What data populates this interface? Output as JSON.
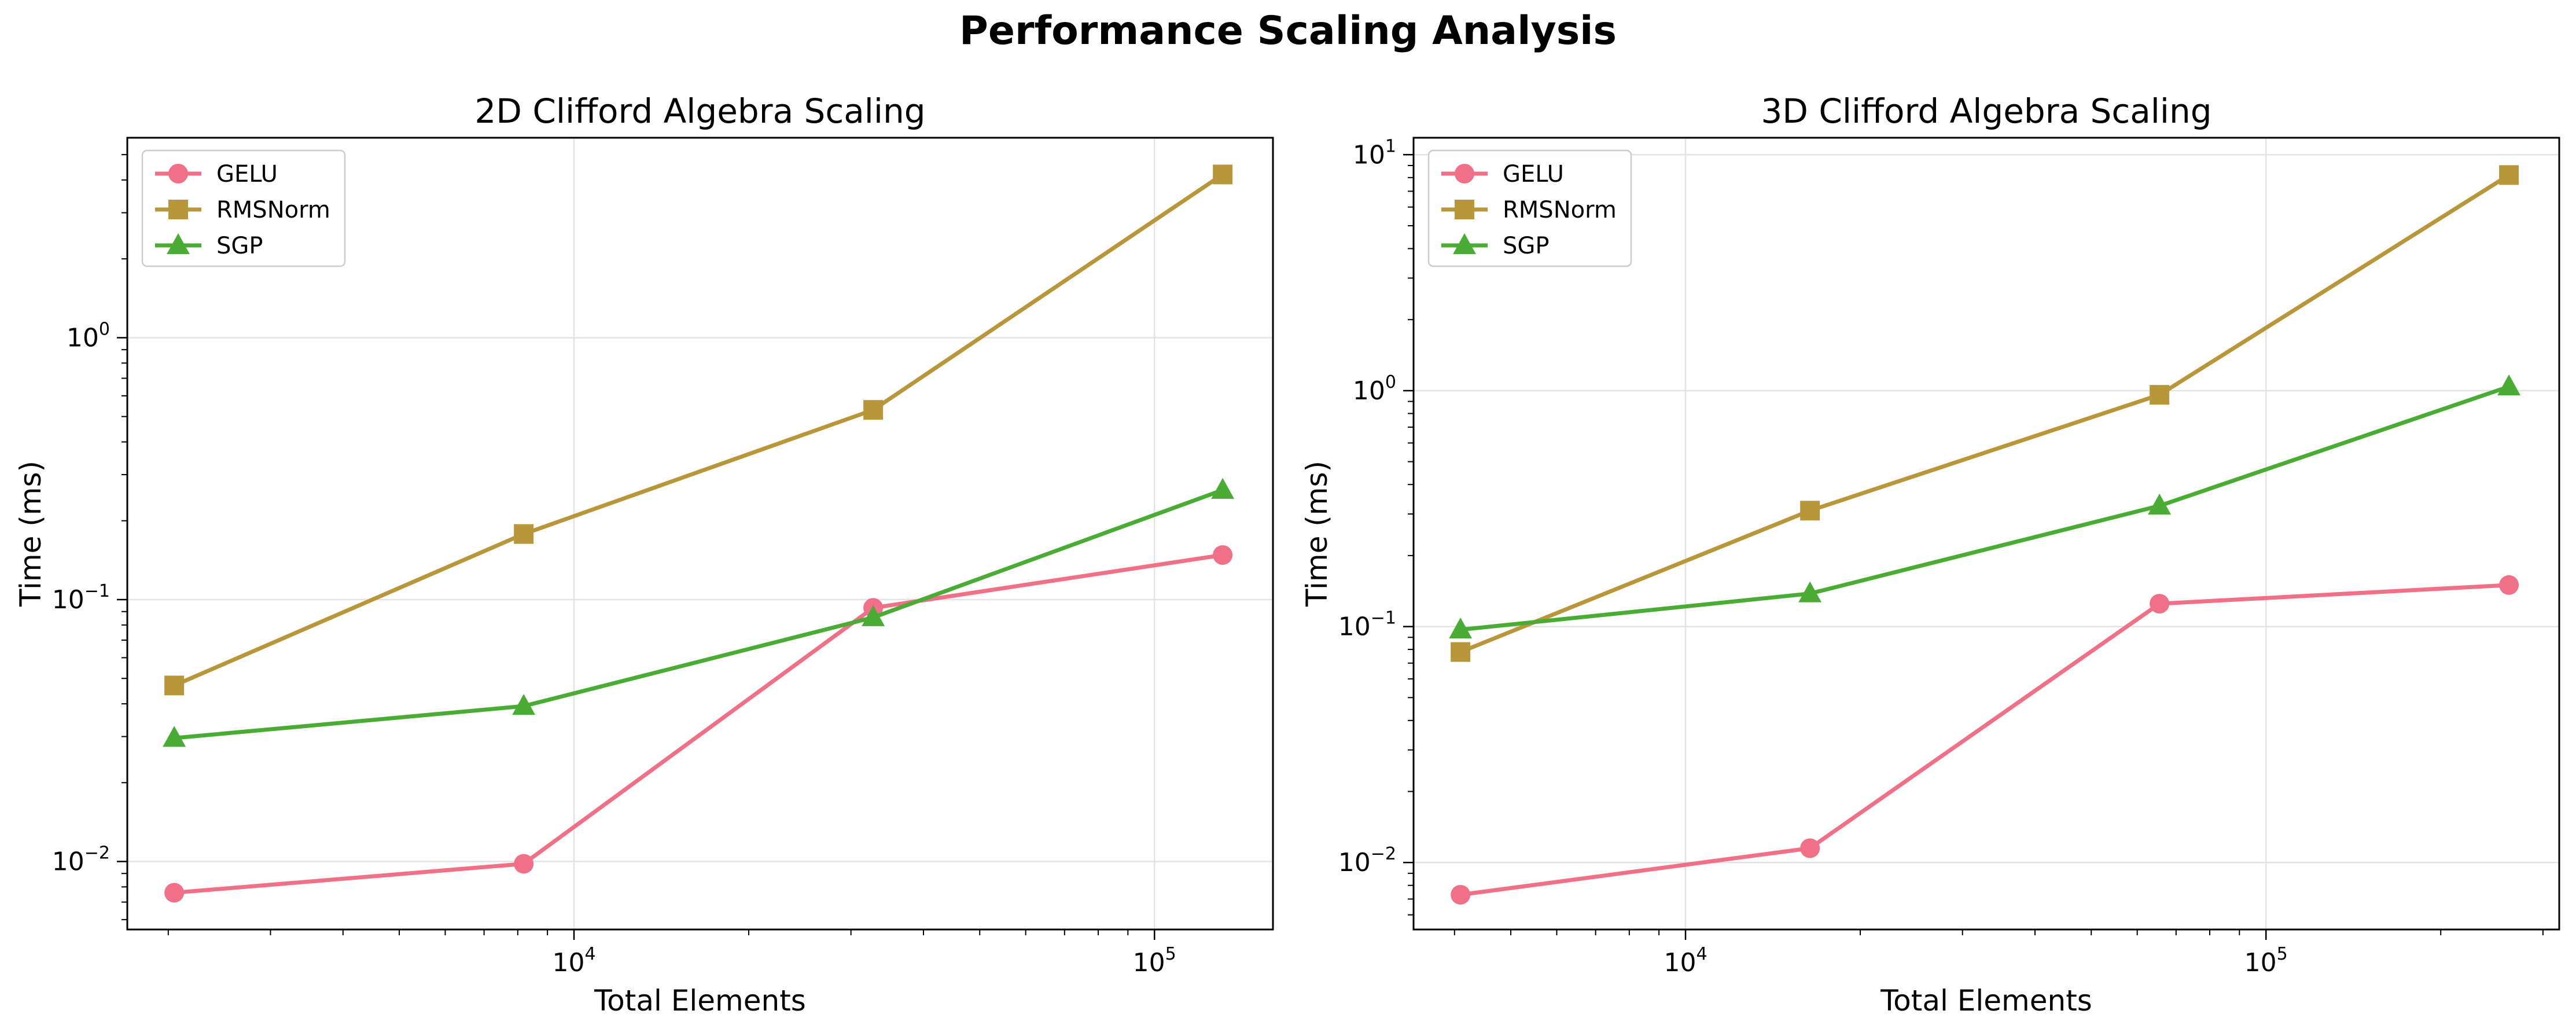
{
  "title": "Performance Scaling Analysis",
  "colors": {
    "GELU": "#f07088",
    "RMSNorm": "#b8963a",
    "SGP": "#4aac34"
  },
  "chart_data": [
    {
      "type": "line",
      "title": "2D Clifford Algebra Scaling",
      "xlabel": "Total Elements",
      "ylabel": "Time (ms)",
      "xscale": "log",
      "yscale": "log",
      "xlim": [
        1700,
        160000
      ],
      "ylim": [
        0.0055,
        5.8
      ],
      "xticks": [
        {
          "v": 10000,
          "base": "10",
          "exp": "4"
        },
        {
          "v": 100000,
          "base": "10",
          "exp": "5"
        }
      ],
      "yticks": [
        {
          "v": 0.01,
          "base": "10",
          "exp": "−2"
        },
        {
          "v": 0.1,
          "base": "10",
          "exp": "−1"
        },
        {
          "v": 1,
          "base": "10",
          "exp": "0"
        }
      ],
      "grid": true,
      "legend": "upper-left",
      "x": [
        2048,
        8192,
        32768,
        131072
      ],
      "series": [
        {
          "name": "GELU",
          "marker": "circle",
          "values": [
            0.0076,
            0.0098,
            0.093,
            0.148
          ]
        },
        {
          "name": "RMSNorm",
          "marker": "square",
          "values": [
            0.047,
            0.178,
            0.53,
            4.2
          ]
        },
        {
          "name": "SGP",
          "marker": "triangle",
          "values": [
            0.0296,
            0.0392,
            0.0855,
            0.262
          ]
        }
      ]
    },
    {
      "type": "line",
      "title": "3D Clifford Algebra Scaling",
      "xlabel": "Total Elements",
      "ylabel": "Time (ms)",
      "xscale": "log",
      "yscale": "log",
      "xlim": [
        3400,
        320000
      ],
      "ylim": [
        0.0052,
        11.8
      ],
      "xticks": [
        {
          "v": 10000,
          "base": "10",
          "exp": "4"
        },
        {
          "v": 100000,
          "base": "10",
          "exp": "5"
        }
      ],
      "yticks": [
        {
          "v": 0.01,
          "base": "10",
          "exp": "−2"
        },
        {
          "v": 0.1,
          "base": "10",
          "exp": "−1"
        },
        {
          "v": 1,
          "base": "10",
          "exp": "0"
        },
        {
          "v": 10,
          "base": "10",
          "exp": "1"
        }
      ],
      "grid": true,
      "legend": "upper-left",
      "x": [
        4096,
        16384,
        65536,
        262144
      ],
      "series": [
        {
          "name": "GELU",
          "marker": "circle",
          "values": [
            0.0073,
            0.0115,
            0.125,
            0.15
          ]
        },
        {
          "name": "RMSNorm",
          "marker": "square",
          "values": [
            0.078,
            0.31,
            0.96,
            8.2
          ]
        },
        {
          "name": "SGP",
          "marker": "triangle",
          "values": [
            0.097,
            0.138,
            0.325,
            1.04
          ]
        }
      ]
    }
  ]
}
